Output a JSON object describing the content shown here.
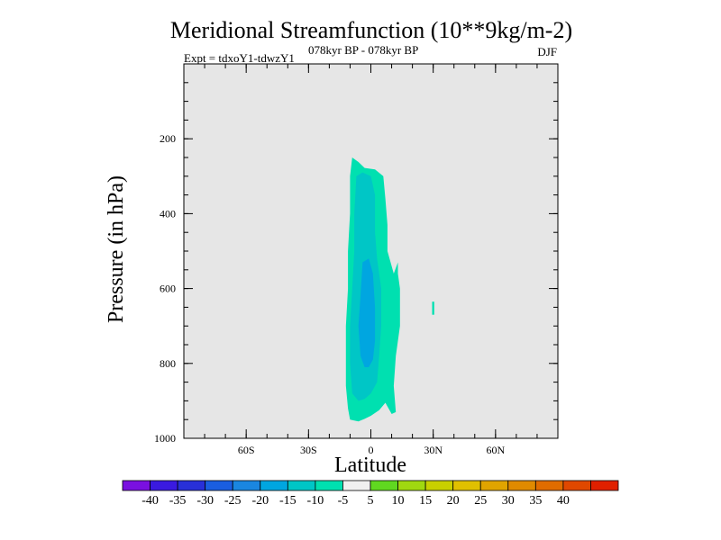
{
  "chart_data": {
    "type": "contour",
    "title": "Meridional Streamfunction (10**9kg/m-2)",
    "subtitle_left": "Expt = tdxoY1-tdwzY1",
    "subtitle_sup": "078kyr BP - 078kyr BP",
    "season": "DJF",
    "xlabel": "Latitude",
    "ylabel": "Pressure (in hPa)",
    "xlim": [
      -90,
      90
    ],
    "ylim": [
      1000,
      0
    ],
    "x_ticks": [
      {
        "value": -60,
        "label": "60S"
      },
      {
        "value": -30,
        "label": "30S"
      },
      {
        "value": 0,
        "label": "0"
      },
      {
        "value": 30,
        "label": "30N"
      },
      {
        "value": 60,
        "label": "60N"
      }
    ],
    "y_ticks": [
      {
        "value": 200,
        "label": "200"
      },
      {
        "value": 400,
        "label": "400"
      },
      {
        "value": 600,
        "label": "600"
      },
      {
        "value": 800,
        "label": "800"
      },
      {
        "value": 1000,
        "label": "1000"
      }
    ],
    "contour_regions": [
      {
        "name": "band -10 to -5",
        "color": "#00e0b0",
        "polygon": [
          [
            -9,
            250
          ],
          [
            -6,
            262
          ],
          [
            -3,
            278
          ],
          [
            2,
            282
          ],
          [
            6,
            300
          ],
          [
            7,
            360
          ],
          [
            8,
            430
          ],
          [
            8,
            500
          ],
          [
            11,
            560
          ],
          [
            13,
            530
          ],
          [
            13,
            560
          ],
          [
            14,
            600
          ],
          [
            14,
            700
          ],
          [
            12,
            780
          ],
          [
            11,
            860
          ],
          [
            12,
            930
          ],
          [
            10,
            935
          ],
          [
            7,
            905
          ],
          [
            4,
            925
          ],
          [
            0,
            940
          ],
          [
            -3,
            948
          ],
          [
            -6,
            955
          ],
          [
            -10,
            950
          ],
          [
            -11,
            920
          ],
          [
            -12,
            860
          ],
          [
            -12,
            800
          ],
          [
            -12,
            700
          ],
          [
            -11,
            600
          ],
          [
            -11,
            500
          ],
          [
            -10,
            400
          ],
          [
            -10,
            300
          ]
        ]
      },
      {
        "name": "band -10 to -5 (cell)",
        "color": "#00e0b0",
        "polygon": [
          [
            29.5,
            635
          ],
          [
            30.5,
            635
          ],
          [
            30.5,
            670
          ],
          [
            29.5,
            670
          ]
        ]
      },
      {
        "name": "band -15 to -10",
        "color": "#00c6c6",
        "polygon": [
          [
            -7,
            300
          ],
          [
            -4,
            290
          ],
          [
            0,
            300
          ],
          [
            2,
            350
          ],
          [
            2,
            450
          ],
          [
            3,
            520
          ],
          [
            5,
            600
          ],
          [
            5,
            700
          ],
          [
            4,
            780
          ],
          [
            3,
            850
          ],
          [
            0,
            880
          ],
          [
            -3,
            895
          ],
          [
            -6,
            900
          ],
          [
            -9,
            880
          ],
          [
            -10,
            800
          ],
          [
            -10,
            700
          ],
          [
            -9,
            600
          ],
          [
            -8,
            500
          ],
          [
            -8,
            400
          ]
        ]
      },
      {
        "name": "band -20 to -15",
        "color": "#00a6e0",
        "polygon": [
          [
            -4,
            530
          ],
          [
            -1,
            520
          ],
          [
            1,
            560
          ],
          [
            2,
            650
          ],
          [
            2,
            740
          ],
          [
            1,
            790
          ],
          [
            -1,
            810
          ],
          [
            -3,
            810
          ],
          [
            -5,
            780
          ],
          [
            -6,
            700
          ],
          [
            -5,
            620
          ]
        ]
      }
    ],
    "colorbar": {
      "colors": [
        "#7a10e0",
        "#3a1ae0",
        "#2830d8",
        "#1a5ee0",
        "#1a86e0",
        "#00a6e0",
        "#00c6c6",
        "#00e0b0",
        "#f0f0f0",
        "#60d820",
        "#a0d810",
        "#c8d000",
        "#e0c000",
        "#e0a400",
        "#e08a00",
        "#e06c00",
        "#e04800",
        "#e02000"
      ],
      "labels": [
        "-40",
        "-35",
        "-30",
        "-25",
        "-20",
        "-15",
        "-10",
        "-5",
        "5",
        "10",
        "15",
        "20",
        "25",
        "30",
        "35",
        "40"
      ]
    }
  }
}
